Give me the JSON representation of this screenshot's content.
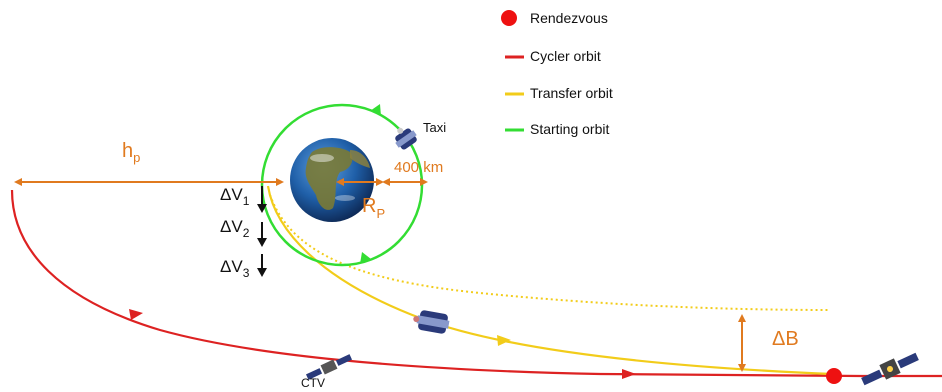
{
  "legend": {
    "rendezvous": {
      "label": "Rendezvous",
      "color": "#ee1111"
    },
    "cycler": {
      "label": "Cycler orbit",
      "color": "#dd2222"
    },
    "transfer": {
      "label": "Transfer orbit",
      "color": "#f2cc1a"
    },
    "starting": {
      "label": "Starting orbit",
      "color": "#33dd33"
    }
  },
  "labels": {
    "h": "h",
    "h_sub": "p",
    "altitude": "400 km",
    "r": "R",
    "r_sub": "P",
    "dv": "ΔV",
    "dv1_sub": "1",
    "dv2_sub": "2",
    "dv3_sub": "3",
    "db": "ΔB",
    "taxi": "Taxi",
    "ctv": "CTV"
  },
  "colors": {
    "orange": "#e07a1f",
    "earth_ocean": "#1f5fa8",
    "earth_land": "#7a7a35",
    "spacecraft": "#2a3a7a"
  },
  "icons": {
    "earth": "earth-globe-icon",
    "taxi": "taxi-capsule-icon",
    "ctv": "ctv-satellite-icon",
    "station": "station-satellite-icon"
  }
}
